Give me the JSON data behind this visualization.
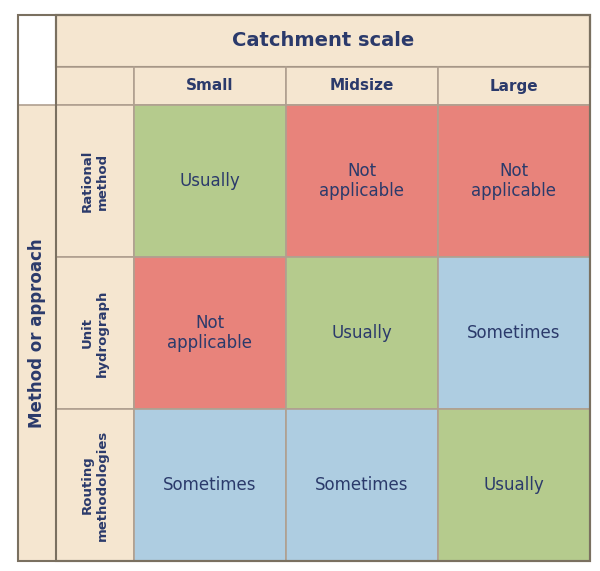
{
  "title": "Catchment scale",
  "col_headers": [
    "Small",
    "Midsize",
    "Large"
  ],
  "row_headers": [
    "Rational\nmethod",
    "Unit\nhydrograph",
    "Routing\nmethodologies"
  ],
  "row_label": "Method or approach",
  "cells": [
    [
      "Usually",
      "Not\napplicable",
      "Not\napplicable"
    ],
    [
      "Not\napplicable",
      "Usually",
      "Sometimes"
    ],
    [
      "Sometimes",
      "Sometimes",
      "Usually"
    ]
  ],
  "cell_colors": [
    [
      "#b5cb8d",
      "#e8837b",
      "#e8837b"
    ],
    [
      "#e8837b",
      "#b5cb8d",
      "#aecde1"
    ],
    [
      "#aecde1",
      "#aecde1",
      "#b5cb8d"
    ]
  ],
  "header_bg": "#f5e6d0",
  "row_header_bg": "#f5e6d0",
  "border_color": "#b0a090",
  "text_color": "#2b3a6b",
  "title_fontsize": 14,
  "header_fontsize": 11,
  "cell_fontsize": 12,
  "row_label_fontsize": 12,
  "row_header_fontsize": 9.5,
  "outer_border_color": "#7a7060",
  "background_color": "#ffffff",
  "fig_width": 6.0,
  "fig_height": 5.71,
  "dpi": 100
}
